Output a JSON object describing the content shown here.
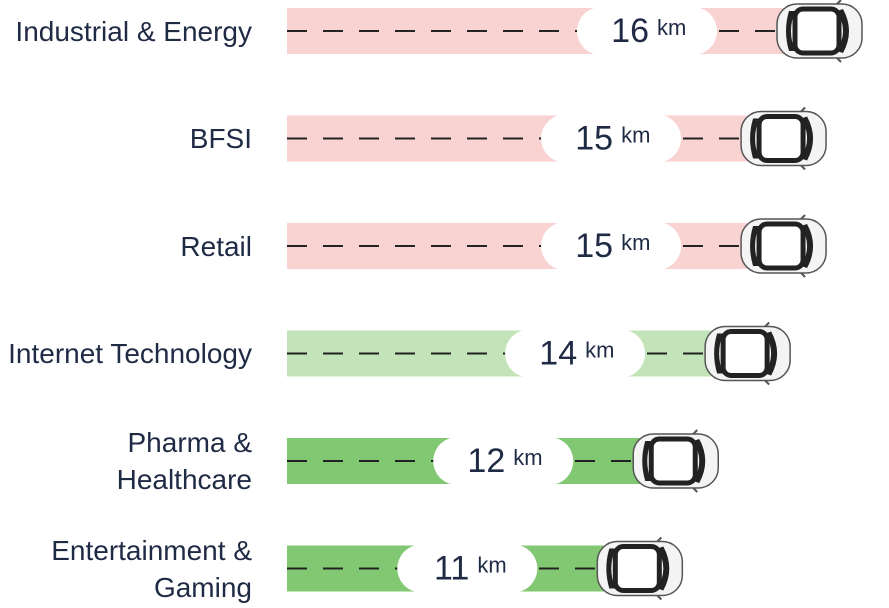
{
  "chart_data": {
    "type": "bar",
    "orientation": "horizontal",
    "categories": [
      "Industrial & Energy",
      "BFSI",
      "Retail",
      "Internet Technology",
      "Pharma & Healthcare",
      "Entertainment & Gaming"
    ],
    "values": [
      16,
      15,
      15,
      14,
      12,
      11
    ],
    "unit": "km",
    "colors": [
      "#f9d2d2",
      "#f9d2d2",
      "#f9d2d2",
      "#c2e4b8",
      "#82c872",
      "#82c872"
    ]
  }
}
